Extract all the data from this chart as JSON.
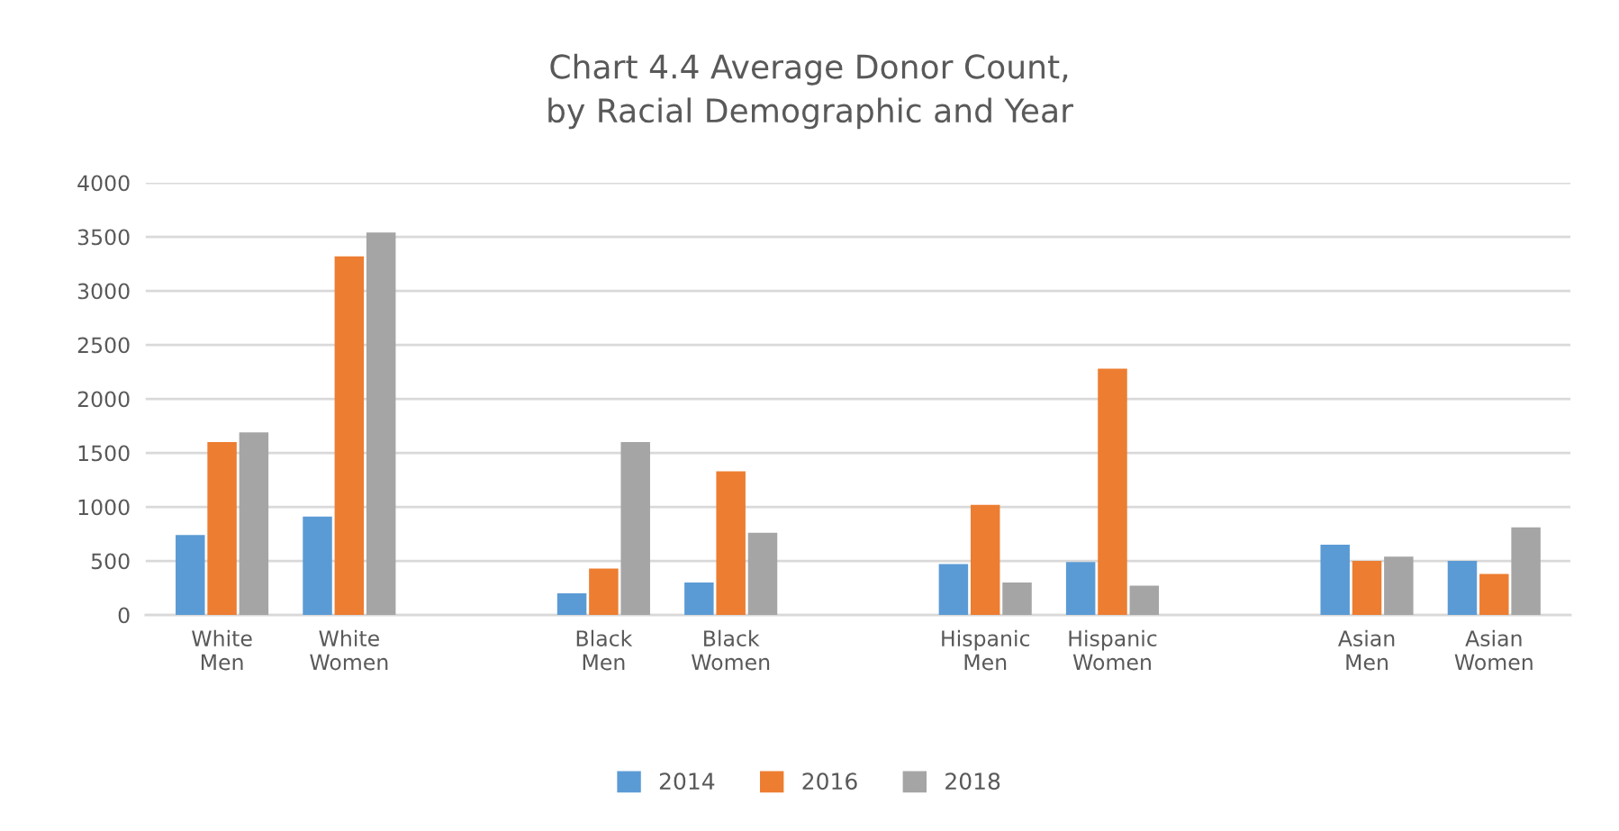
{
  "chart_data": {
    "type": "bar",
    "title": "Chart 4.4 Average Donor Count,\nby Racial Demographic and Year",
    "categories": [
      "White\nMen",
      "White\nWomen",
      null,
      "Black\nMen",
      "Black\nWomen",
      null,
      "Hispanic\nMen",
      "Hispanic\nWomen",
      null,
      "Asian\nMen",
      "Asian\nWomen"
    ],
    "series": [
      {
        "name": "2014",
        "color": "#5b9bd5",
        "values": [
          740,
          910,
          null,
          200,
          300,
          null,
          470,
          490,
          null,
          650,
          500
        ]
      },
      {
        "name": "2016",
        "color": "#ed7d31",
        "values": [
          1600,
          3320,
          null,
          430,
          1330,
          null,
          1020,
          2280,
          null,
          500,
          380
        ]
      },
      {
        "name": "2018",
        "color": "#a5a5a5",
        "values": [
          1690,
          3540,
          null,
          1600,
          760,
          null,
          300,
          270,
          null,
          540,
          810
        ]
      }
    ],
    "ylim": [
      0,
      4000
    ],
    "yticks": [
      0,
      500,
      1000,
      1500,
      2000,
      2500,
      3000,
      3500,
      4000
    ],
    "grid": "y",
    "legend": "bottom"
  }
}
